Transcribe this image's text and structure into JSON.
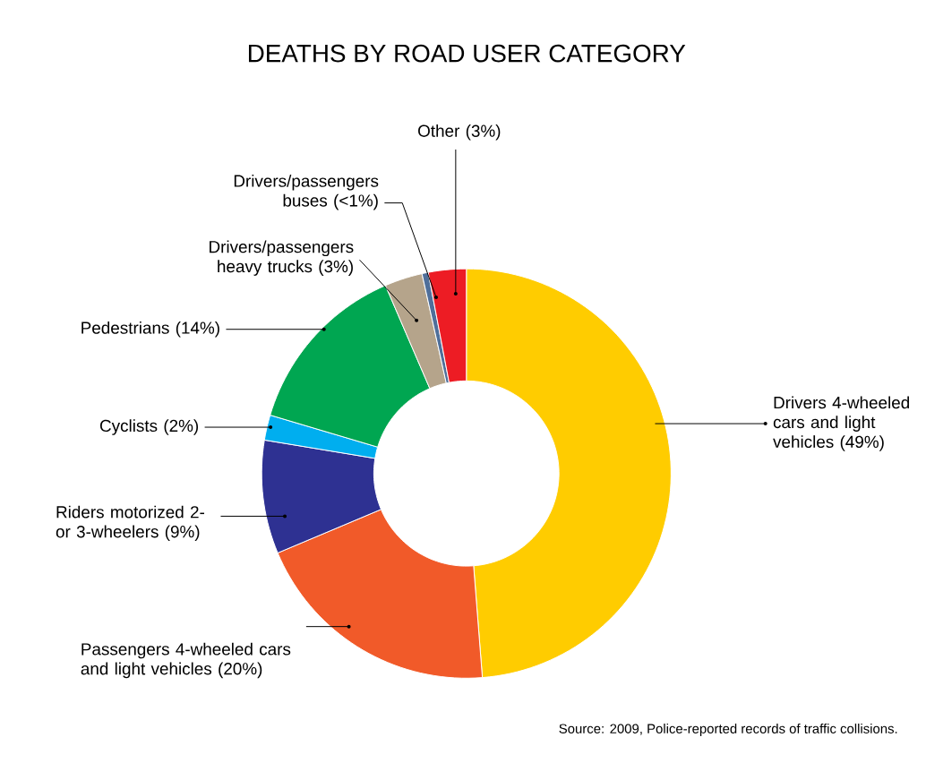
{
  "chart_data": {
    "type": "donut",
    "title": "DEATHS BY ROAD USER CATEGORY",
    "categories": [
      "Drivers 4-wheeled cars and light vehicles (49%)",
      "Passengers 4-wheeled cars and light vehicles (20%)",
      "Riders motorized 2- or 3-wheelers (9%)",
      "Cyclists (2%)",
      "Pedestrians (14%)",
      "Drivers/passengers heavy trucks (3%)",
      "Drivers/passengers buses (<1%)",
      "Other (3%)"
    ],
    "values": [
      49,
      20,
      9,
      2,
      14,
      3,
      0.5,
      3
    ],
    "colors": [
      "#ffcc00",
      "#f15a29",
      "#2e3192",
      "#00aeef",
      "#00a651",
      "#b5a48b",
      "#4f6f9a",
      "#ed1c24"
    ],
    "annotations": [
      "Source: 2009, Police-reported records of traffic collisions."
    ]
  }
}
